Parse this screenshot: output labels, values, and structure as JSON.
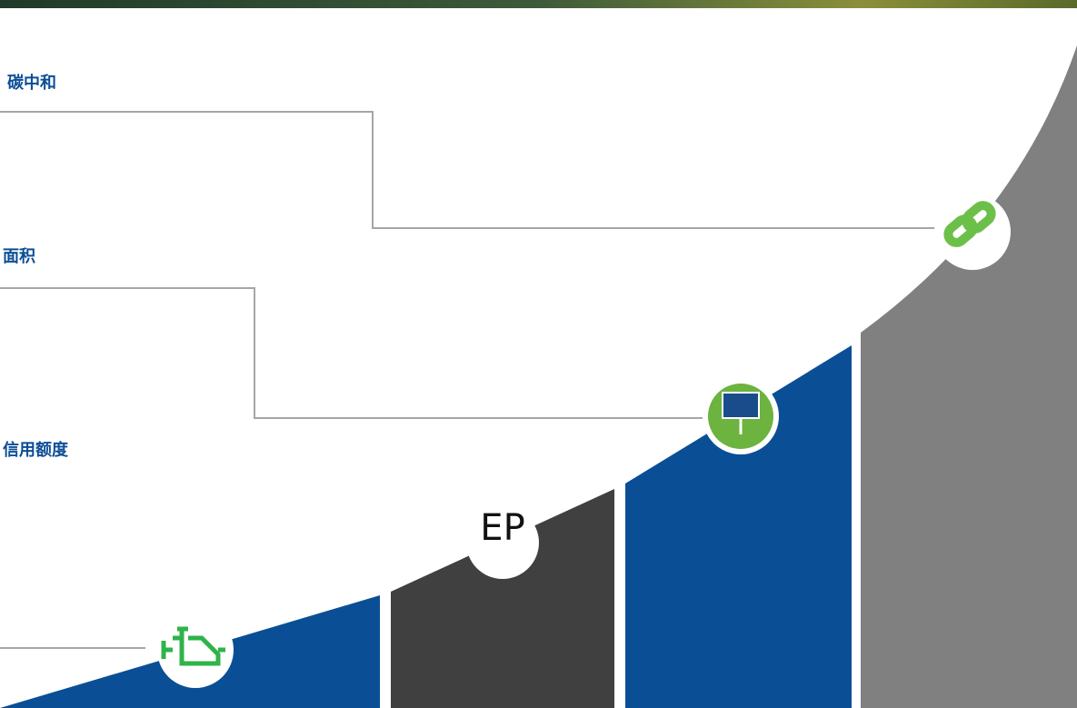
{
  "labels": {
    "carbon": "碳中和",
    "area": "面积",
    "credit": "信用额度",
    "ep": "EP"
  }
}
